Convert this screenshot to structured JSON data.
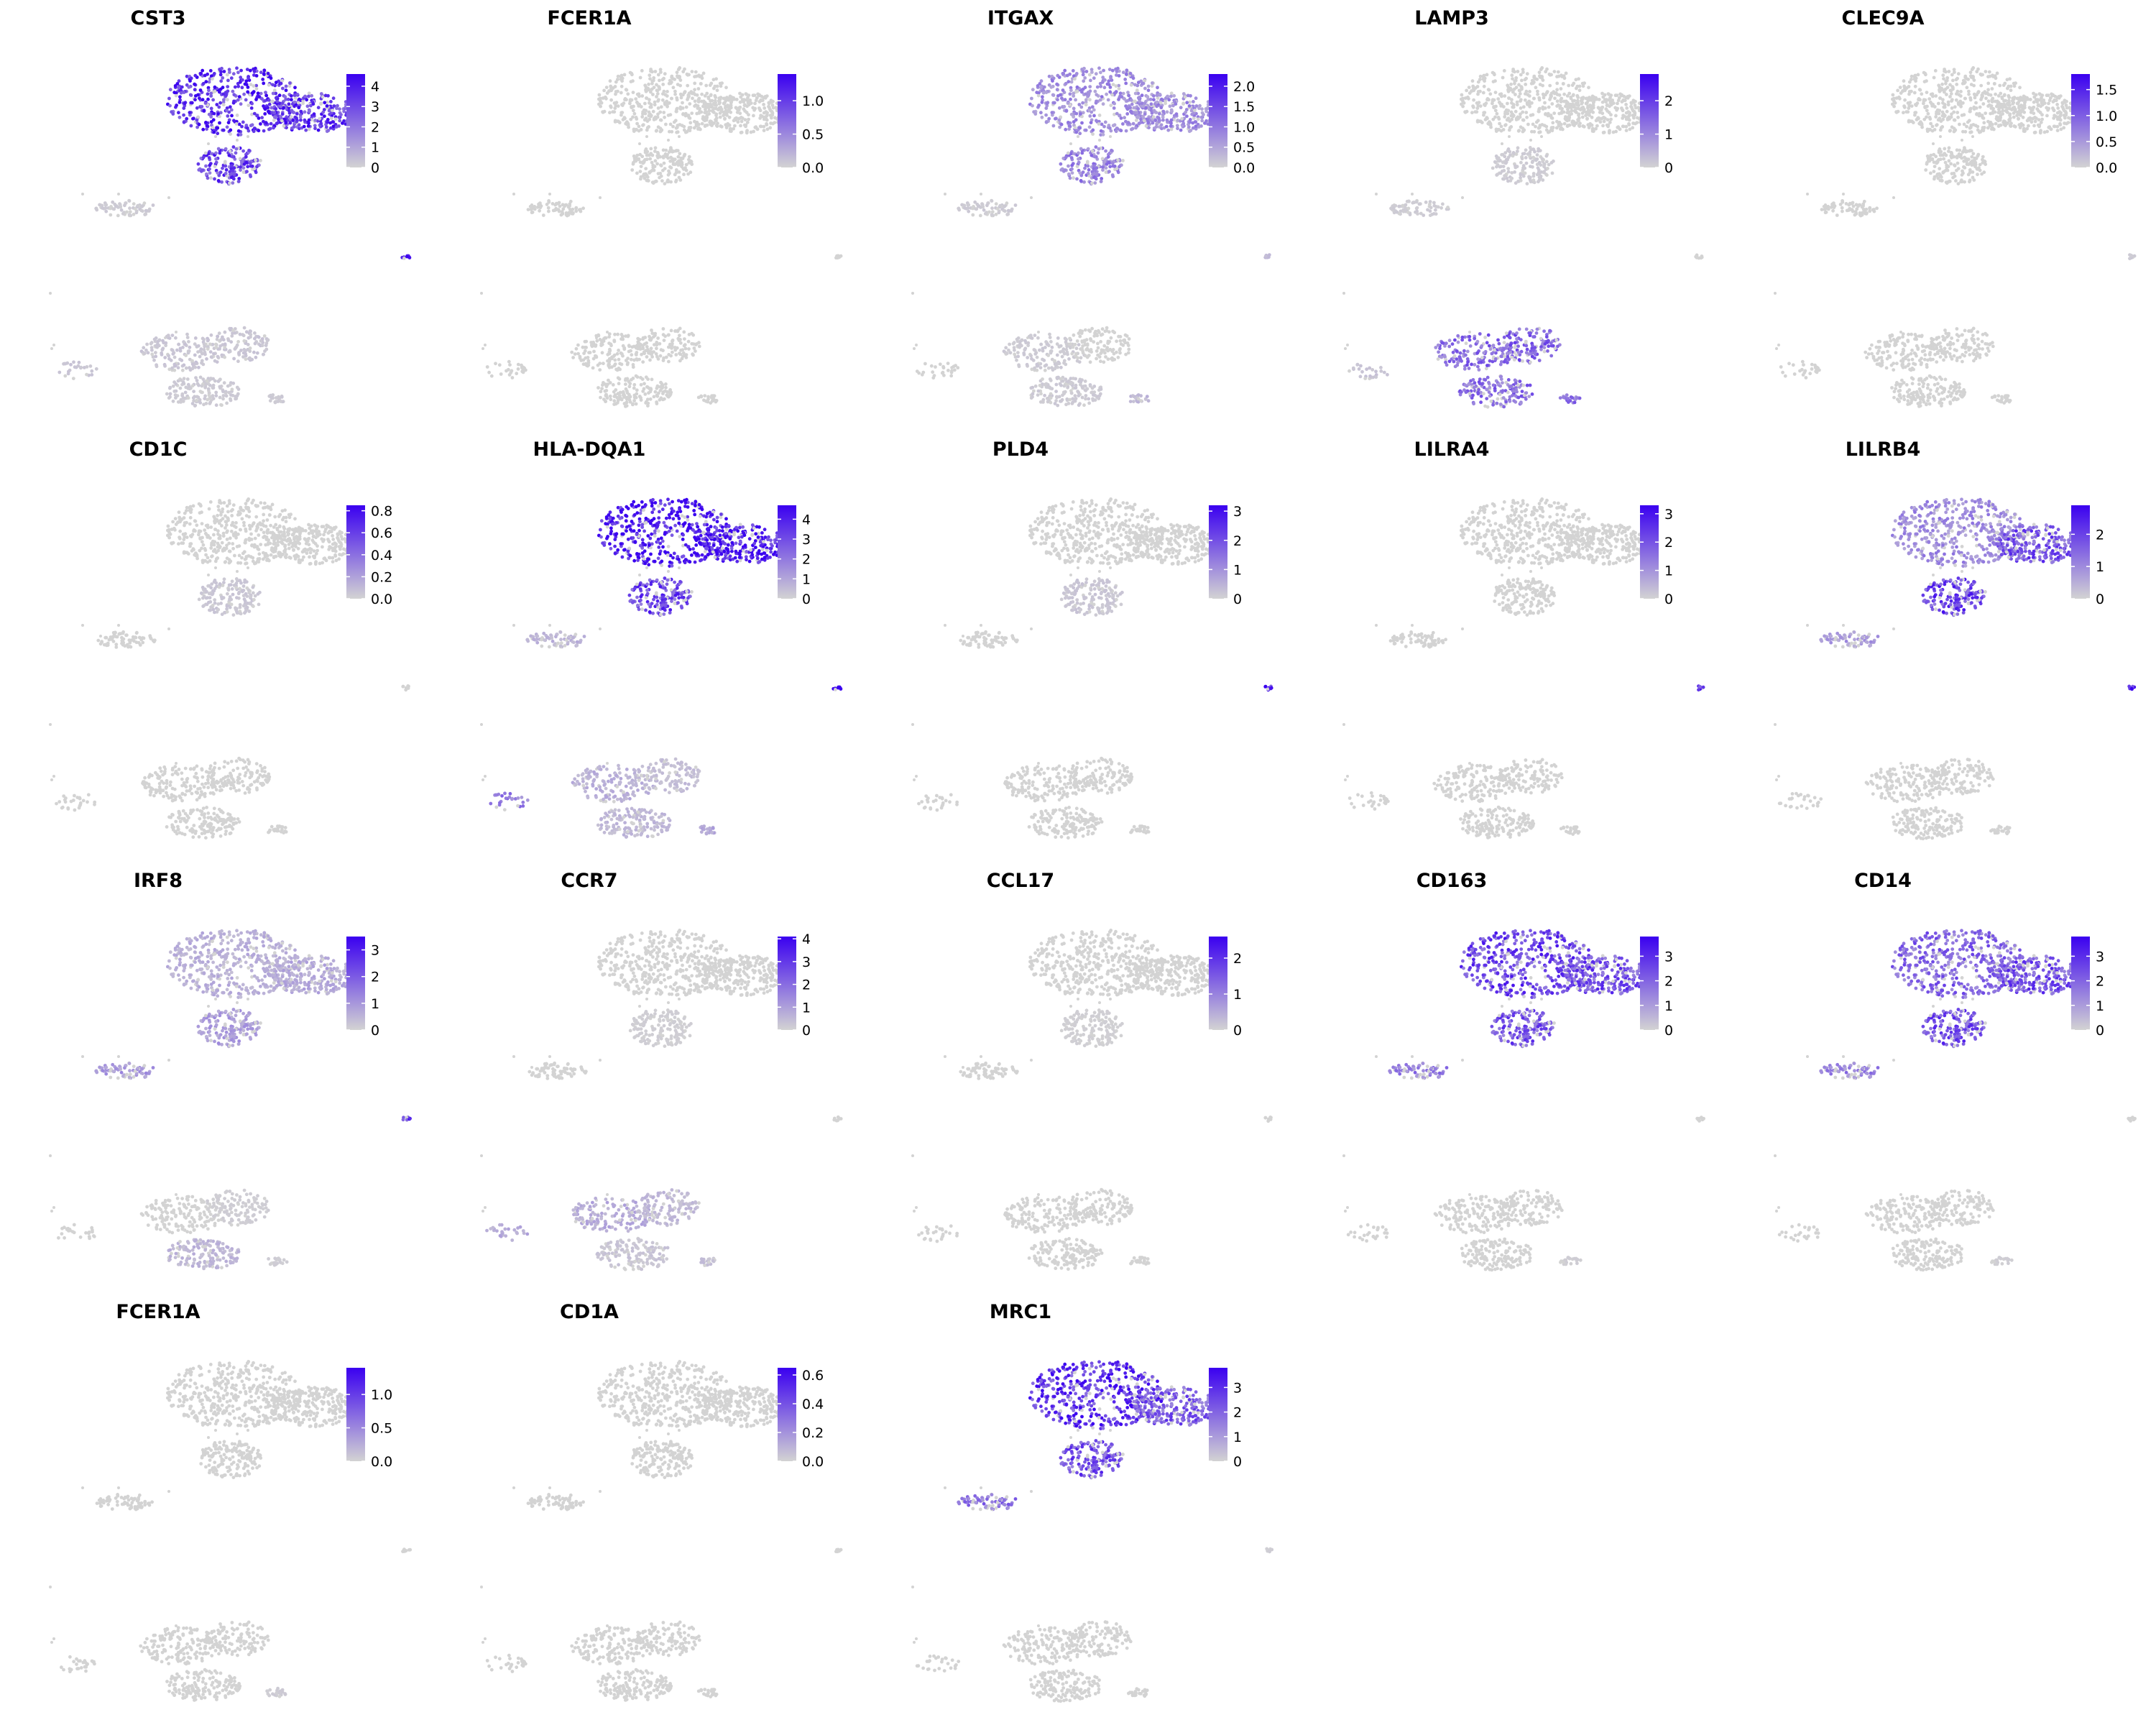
{
  "chart_data": [
    {
      "type": "scatter",
      "title": "CST3",
      "legend_ticks": [
        "0",
        "1",
        "2",
        "3",
        "4"
      ],
      "max_value": 4.6,
      "expression": {
        "C0": 3.8,
        "C1": 3.5,
        "C2": 3.2,
        "C3": 0.2,
        "C4": 0.3,
        "C5": 0.3,
        "C6": 0.2,
        "C7": 0.2,
        "C8": 0.3,
        "C9": 3.5
      }
    },
    {
      "type": "scatter",
      "title": "FCER1A",
      "legend_ticks": [
        "0.0",
        "0.5",
        "1.0"
      ],
      "max_value": 1.4,
      "expression": {
        "C0": 0,
        "C1": 0,
        "C2": 0,
        "C3": 0,
        "C4": 0,
        "C5": 0,
        "C6": 0,
        "C7": 0,
        "C8": 0,
        "C9": 0
      }
    },
    {
      "type": "scatter",
      "title": "ITGAX",
      "legend_ticks": [
        "0.0",
        "0.5",
        "1.0",
        "1.5",
        "2.0"
      ],
      "max_value": 2.3,
      "expression": {
        "C0": 0.8,
        "C1": 0.8,
        "C2": 0.9,
        "C3": 0.1,
        "C4": 0.1,
        "C5": 0,
        "C6": 0.1,
        "C7": 0.3,
        "C8": 0,
        "C9": 0.3
      }
    },
    {
      "type": "scatter",
      "title": "LAMP3",
      "legend_ticks": [
        "0",
        "1",
        "2"
      ],
      "max_value": 2.8,
      "expression": {
        "C0": 0,
        "C1": 0,
        "C2": 0.1,
        "C3": 0.1,
        "C4": 1.4,
        "C5": 1.5,
        "C6": 1.4,
        "C7": 1.3,
        "C8": 0.2,
        "C9": 0
      }
    },
    {
      "type": "scatter",
      "title": "CLEC9A",
      "legend_ticks": [
        "0.0",
        "0.5",
        "1.0",
        "1.5"
      ],
      "max_value": 1.8,
      "expression": {
        "C0": 0,
        "C1": 0,
        "C2": 0,
        "C3": 0,
        "C4": 0,
        "C5": 0,
        "C6": 0,
        "C7": 0,
        "C8": 0,
        "C9": 0.1
      }
    },
    {
      "type": "scatter",
      "title": "CD1C",
      "legend_ticks": [
        "0.0",
        "0.2",
        "0.4",
        "0.6",
        "0.8"
      ],
      "max_value": 0.85,
      "expression": {
        "C0": 0,
        "C1": 0,
        "C2": 0.05,
        "C3": 0,
        "C4": 0,
        "C5": 0,
        "C6": 0,
        "C7": 0,
        "C8": 0,
        "C9": 0
      }
    },
    {
      "type": "scatter",
      "title": "HLA-DQA1",
      "legend_ticks": [
        "0",
        "1",
        "2",
        "3",
        "4"
      ],
      "max_value": 4.7,
      "expression": {
        "C0": 4.5,
        "C1": 4.4,
        "C2": 3.2,
        "C3": 0.7,
        "C4": 0.8,
        "C5": 0.5,
        "C6": 0.6,
        "C7": 1.0,
        "C8": 2.0,
        "C9": 4.2
      }
    },
    {
      "type": "scatter",
      "title": "PLD4",
      "legend_ticks": [
        "0",
        "1",
        "2",
        "3"
      ],
      "max_value": 3.2,
      "expression": {
        "C0": 0,
        "C1": 0,
        "C2": 0.2,
        "C3": 0,
        "C4": 0,
        "C5": 0,
        "C6": 0,
        "C7": 0,
        "C8": 0,
        "C9": 3.0
      }
    },
    {
      "type": "scatter",
      "title": "LILRA4",
      "legend_ticks": [
        "0",
        "1",
        "2",
        "3"
      ],
      "max_value": 3.3,
      "expression": {
        "C0": 0,
        "C1": 0,
        "C2": 0,
        "C3": 0,
        "C4": 0,
        "C5": 0,
        "C6": 0,
        "C7": 0,
        "C8": 0,
        "C9": 3.1
      }
    },
    {
      "type": "scatter",
      "title": "LILRB4",
      "legend_ticks": [
        "0",
        "1",
        "2"
      ],
      "max_value": 2.9,
      "expression": {
        "C0": 1.0,
        "C1": 1.8,
        "C2": 2.0,
        "C3": 0.8,
        "C4": 0,
        "C5": 0,
        "C6": 0,
        "C7": 0,
        "C8": 0,
        "C9": 2.6
      }
    },
    {
      "type": "scatter",
      "title": "IRF8",
      "legend_ticks": [
        "0",
        "1",
        "2",
        "3"
      ],
      "max_value": 3.5,
      "expression": {
        "C0": 0.6,
        "C1": 0.7,
        "C2": 0.9,
        "C3": 1.0,
        "C4": 0,
        "C5": 0.1,
        "C6": 0.5,
        "C7": 0.1,
        "C8": 0,
        "C9": 3.2
      }
    },
    {
      "type": "scatter",
      "title": "CCR7",
      "legend_ticks": [
        "0",
        "1",
        "2",
        "3",
        "4"
      ],
      "max_value": 4.1,
      "expression": {
        "C0": 0,
        "C1": 0,
        "C2": 0.1,
        "C3": 0,
        "C4": 0.8,
        "C5": 0.5,
        "C6": 0.3,
        "C7": 0.4,
        "C8": 0.8,
        "C9": 0
      }
    },
    {
      "type": "scatter",
      "title": "CCL17",
      "legend_ticks": [
        "0",
        "1",
        "2"
      ],
      "max_value": 2.6,
      "expression": {
        "C0": 0,
        "C1": 0,
        "C2": 0.05,
        "C3": 0,
        "C4": 0,
        "C5": 0,
        "C6": 0,
        "C7": 0,
        "C8": 0,
        "C9": 0
      }
    },
    {
      "type": "scatter",
      "title": "CD163",
      "legend_ticks": [
        "0",
        "1",
        "2",
        "3"
      ],
      "max_value": 3.8,
      "expression": {
        "C0": 2.6,
        "C1": 2.4,
        "C2": 2.3,
        "C3": 1.6,
        "C4": 0,
        "C5": 0,
        "C6": 0,
        "C7": 0.1,
        "C8": 0,
        "C9": 0
      }
    },
    {
      "type": "scatter",
      "title": "CD14",
      "legend_ticks": [
        "0",
        "1",
        "2",
        "3"
      ],
      "max_value": 3.8,
      "expression": {
        "C0": 2.0,
        "C1": 2.4,
        "C2": 2.4,
        "C3": 1.5,
        "C4": 0,
        "C5": 0,
        "C6": 0,
        "C7": 0.1,
        "C8": 0,
        "C9": 0
      }
    },
    {
      "type": "scatter",
      "title": "FCER1A",
      "legend_ticks": [
        "0.0",
        "0.5",
        "1.0"
      ],
      "max_value": 1.4,
      "expression": {
        "C0": 0,
        "C1": 0,
        "C2": 0,
        "C3": 0,
        "C4": 0,
        "C5": 0,
        "C6": 0,
        "C7": 0.05,
        "C8": 0,
        "C9": 0
      }
    },
    {
      "type": "scatter",
      "title": "CD1A",
      "legend_ticks": [
        "0.0",
        "0.2",
        "0.4",
        "0.6"
      ],
      "max_value": 0.65,
      "expression": {
        "C0": 0,
        "C1": 0,
        "C2": 0,
        "C3": 0,
        "C4": 0,
        "C5": 0,
        "C6": 0,
        "C7": 0,
        "C8": 0,
        "C9": 0
      }
    },
    {
      "type": "scatter",
      "title": "MRC1",
      "legend_ticks": [
        "0",
        "1",
        "2",
        "3"
      ],
      "max_value": 3.8,
      "expression": {
        "C0": 3.0,
        "C1": 2.2,
        "C2": 2.4,
        "C3": 1.8,
        "C4": 0,
        "C5": 0,
        "C6": 0,
        "C7": 0,
        "C8": 0,
        "C9": 0.1
      }
    }
  ],
  "colors": {
    "low": "#d3d3d3",
    "high": "#3a00f0"
  }
}
